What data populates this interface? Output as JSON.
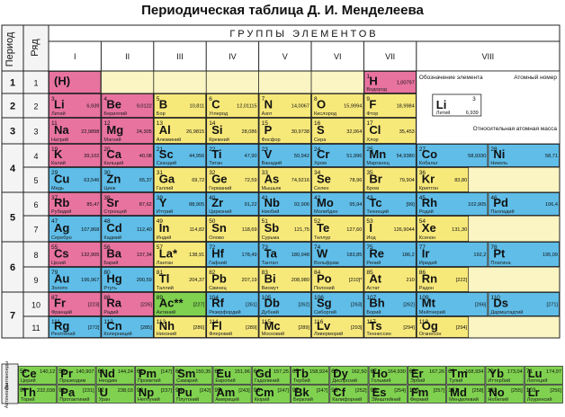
{
  "title": "Периодическая таблица Д. И. Менделеева",
  "headers": {
    "period": "Период",
    "row": "Ряд",
    "groups": "ГРУППЫ ЭЛЕМЕНТОВ",
    "group_numerals": [
      "I",
      "II",
      "III",
      "IV",
      "V",
      "VI",
      "VII",
      "VIII"
    ],
    "lanthanides": "Лантаноиды",
    "actinides": "Актиноиды"
  },
  "periods": [
    "1",
    "2",
    "3",
    "4",
    "5",
    "6",
    "7"
  ],
  "rows": [
    "1",
    "2",
    "3",
    "4",
    "5",
    "6",
    "7",
    "8",
    "9",
    "10",
    "11"
  ],
  "legend": {
    "symbol": "Li",
    "number": "3",
    "name": "Литий",
    "mass": "6,939",
    "label_designation": "Обозначение элемента",
    "label_atomic_number": "Атомный номер",
    "label_atomic_mass": "Относительная атомная масса"
  },
  "colors": {
    "s": "#e8739f",
    "p": "#f7e87a",
    "d": "#5fbde8",
    "f": "#7fd14f",
    "empty": "#fbf5c4",
    "border": "#222222"
  },
  "elements": [
    {
      "col": 0,
      "row": 1,
      "sym": "(H)",
      "num": "",
      "name": "",
      "mass": "",
      "c": "s"
    },
    {
      "col": 6,
      "row": 1,
      "sym": "H",
      "num": "1",
      "name": "Водород",
      "mass": "1,00797",
      "c": "s"
    },
    {
      "col": 7,
      "row": 1,
      "sym": "He",
      "num": "2",
      "name": "Гелий",
      "mass": "4,0026",
      "c": "s"
    },
    {
      "col": 0,
      "row": 2,
      "sym": "Li",
      "num": "3",
      "name": "Литий",
      "mass": "6,939",
      "c": "s"
    },
    {
      "col": 1,
      "row": 2,
      "sym": "Be",
      "num": "4",
      "name": "Бериллий",
      "mass": "9,0122",
      "c": "s"
    },
    {
      "col": 2,
      "row": 2,
      "sym": "B",
      "num": "5",
      "name": "Бор",
      "mass": "10,811",
      "c": "p"
    },
    {
      "col": 3,
      "row": 2,
      "sym": "C",
      "num": "6",
      "name": "Углерод",
      "mass": "12,01115",
      "c": "p"
    },
    {
      "col": 4,
      "row": 2,
      "sym": "N",
      "num": "7",
      "name": "Азот",
      "mass": "14,0067",
      "c": "p"
    },
    {
      "col": 5,
      "row": 2,
      "sym": "O",
      "num": "8",
      "name": "Кислород",
      "mass": "15,9994",
      "c": "p"
    },
    {
      "col": 6,
      "row": 2,
      "sym": "F",
      "num": "9",
      "name": "Фтор",
      "mass": "18,9984",
      "c": "p"
    },
    {
      "col": 7,
      "row": 2,
      "sym": "Ne",
      "num": "10",
      "name": "Неон",
      "mass": "20,179",
      "c": "p"
    },
    {
      "col": 0,
      "row": 3,
      "sym": "Na",
      "num": "11",
      "name": "Натрий",
      "mass": "22,9898",
      "c": "s"
    },
    {
      "col": 1,
      "row": 3,
      "sym": "Mg",
      "num": "12",
      "name": "Магний",
      "mass": "24,305",
      "c": "s"
    },
    {
      "col": 2,
      "row": 3,
      "sym": "Al",
      "num": "13",
      "name": "Алюминий",
      "mass": "26,9815",
      "c": "p"
    },
    {
      "col": 3,
      "row": 3,
      "sym": "Si",
      "num": "14",
      "name": "Кремний",
      "mass": "28,086",
      "c": "p"
    },
    {
      "col": 4,
      "row": 3,
      "sym": "P",
      "num": "15",
      "name": "Фосфор",
      "mass": "30,9738",
      "c": "p"
    },
    {
      "col": 5,
      "row": 3,
      "sym": "S",
      "num": "16",
      "name": "Сера",
      "mass": "32,064",
      "c": "p"
    },
    {
      "col": 6,
      "row": 3,
      "sym": "Cl",
      "num": "17",
      "name": "Хлор",
      "mass": "35,453",
      "c": "p"
    },
    {
      "col": 7,
      "row": 3,
      "sym": "Ar",
      "num": "18",
      "name": "Аргон",
      "mass": "39,948",
      "c": "p"
    },
    {
      "col": 0,
      "row": 4,
      "sym": "K",
      "num": "19",
      "name": "Калий",
      "mass": "39,102",
      "c": "s"
    },
    {
      "col": 1,
      "row": 4,
      "sym": "Ca",
      "num": "20",
      "name": "Кальций",
      "mass": "40,08",
      "c": "s"
    },
    {
      "col": 2,
      "row": 4,
      "sym": "Sc",
      "num": "21",
      "name": "Скандий",
      "mass": "44,956",
      "c": "d"
    },
    {
      "col": 3,
      "row": 4,
      "sym": "Ti",
      "num": "22",
      "name": "Титан",
      "mass": "47,90",
      "c": "d"
    },
    {
      "col": 4,
      "row": 4,
      "sym": "V",
      "num": "23",
      "name": "Ванадий",
      "mass": "50,942",
      "c": "d"
    },
    {
      "col": 5,
      "row": 4,
      "sym": "Cr",
      "num": "24",
      "name": "Хром",
      "mass": "51,996",
      "c": "d"
    },
    {
      "col": 6,
      "row": 4,
      "sym": "Mn",
      "num": "25",
      "name": "Марганец",
      "mass": "54,9380",
      "c": "d"
    },
    {
      "col": 7,
      "row": 4,
      "sym": "Fe",
      "num": "26",
      "name": "Железо",
      "mass": "55,847",
      "c": "d"
    },
    {
      "col": 8,
      "row": 4,
      "sym": "Co",
      "num": "27",
      "name": "Кобальт",
      "mass": "58,9330",
      "c": "d"
    },
    {
      "col": 9,
      "row": 4,
      "sym": "Ni",
      "num": "28",
      "name": "Никель",
      "mass": "58,71",
      "c": "d"
    },
    {
      "col": 0,
      "row": 5,
      "sym": "Cu",
      "num": "29",
      "name": "Медь",
      "mass": "63,546",
      "c": "d"
    },
    {
      "col": 1,
      "row": 5,
      "sym": "Zn",
      "num": "30",
      "name": "Цинк",
      "mass": "65,37",
      "c": "d"
    },
    {
      "col": 2,
      "row": 5,
      "sym": "Ga",
      "num": "31",
      "name": "Галлий",
      "mass": "69,72",
      "c": "p"
    },
    {
      "col": 3,
      "row": 5,
      "sym": "Ge",
      "num": "32",
      "name": "Германий",
      "mass": "72,59",
      "c": "p"
    },
    {
      "col": 4,
      "row": 5,
      "sym": "As",
      "num": "33",
      "name": "Мышьяк",
      "mass": "74,9216",
      "c": "p"
    },
    {
      "col": 5,
      "row": 5,
      "sym": "Se",
      "num": "34",
      "name": "Селен",
      "mass": "78,96",
      "c": "p"
    },
    {
      "col": 6,
      "row": 5,
      "sym": "Br",
      "num": "35",
      "name": "Бром",
      "mass": "79,904",
      "c": "p"
    },
    {
      "col": 7,
      "row": 5,
      "sym": "Kr",
      "num": "36",
      "name": "Криптон",
      "mass": "83,80",
      "c": "p"
    },
    {
      "col": 0,
      "row": 6,
      "sym": "Rb",
      "num": "37",
      "name": "Рубидий",
      "mass": "85,47",
      "c": "s"
    },
    {
      "col": 1,
      "row": 6,
      "sym": "Sr",
      "num": "38",
      "name": "Стронций",
      "mass": "87,62",
      "c": "s"
    },
    {
      "col": 2,
      "row": 6,
      "sym": "Y",
      "num": "39",
      "name": "Иттрий",
      "mass": "88,905",
      "c": "d"
    },
    {
      "col": 3,
      "row": 6,
      "sym": "Zr",
      "num": "40",
      "name": "Цирконий",
      "mass": "91,22",
      "c": "d"
    },
    {
      "col": 4,
      "row": 6,
      "sym": "Nb",
      "num": "41",
      "name": "Ниобий",
      "mass": "92,906",
      "c": "d"
    },
    {
      "col": 5,
      "row": 6,
      "sym": "Mo",
      "num": "42",
      "name": "Молибден",
      "mass": "95,94",
      "c": "d"
    },
    {
      "col": 6,
      "row": 6,
      "sym": "Tc",
      "num": "43",
      "name": "Технеций",
      "mass": "[99]",
      "c": "d"
    },
    {
      "col": 7,
      "row": 6,
      "sym": "Ru",
      "num": "44",
      "name": "Рутений",
      "mass": "101,07",
      "c": "d"
    },
    {
      "col": 8,
      "row": 6,
      "sym": "Rh",
      "num": "45",
      "name": "Родий",
      "mass": "102,905",
      "c": "d"
    },
    {
      "col": 9,
      "row": 6,
      "sym": "Pd",
      "num": "46",
      "name": "Палладий",
      "mass": "106,4",
      "c": "d"
    },
    {
      "col": 0,
      "row": 7,
      "sym": "Ag",
      "num": "47",
      "name": "Серебро",
      "mass": "107,868",
      "c": "d"
    },
    {
      "col": 1,
      "row": 7,
      "sym": "Cd",
      "num": "48",
      "name": "Кадмий",
      "mass": "112,40",
      "c": "d"
    },
    {
      "col": 2,
      "row": 7,
      "sym": "In",
      "num": "49",
      "name": "Индий",
      "mass": "114,82",
      "c": "p"
    },
    {
      "col": 3,
      "row": 7,
      "sym": "Sn",
      "num": "50",
      "name": "Олово",
      "mass": "118,69",
      "c": "p"
    },
    {
      "col": 4,
      "row": 7,
      "sym": "Sb",
      "num": "51",
      "name": "Сурьма",
      "mass": "121,75",
      "c": "p"
    },
    {
      "col": 5,
      "row": 7,
      "sym": "Te",
      "num": "52",
      "name": "Теллур",
      "mass": "127,60",
      "c": "p"
    },
    {
      "col": 6,
      "row": 7,
      "sym": "I",
      "num": "53",
      "name": "Иод",
      "mass": "126,9044",
      "c": "p"
    },
    {
      "col": 7,
      "row": 7,
      "sym": "Xe",
      "num": "54",
      "name": "Ксенон",
      "mass": "131,30",
      "c": "p"
    },
    {
      "col": 0,
      "row": 8,
      "sym": "Cs",
      "num": "55",
      "name": "Цезий",
      "mass": "132,905",
      "c": "s"
    },
    {
      "col": 1,
      "row": 8,
      "sym": "Ba",
      "num": "56",
      "name": "Барий",
      "mass": "137,34",
      "c": "s"
    },
    {
      "col": 2,
      "row": 8,
      "sym": "La*",
      "num": "57",
      "name": "Лантан",
      "mass": "138,91",
      "c": "p"
    },
    {
      "col": 3,
      "row": 8,
      "sym": "Hf",
      "num": "72",
      "name": "Гафний",
      "mass": "178,49",
      "c": "d"
    },
    {
      "col": 4,
      "row": 8,
      "sym": "Ta",
      "num": "73",
      "name": "Тантал",
      "mass": "180,948",
      "c": "d"
    },
    {
      "col": 5,
      "row": 8,
      "sym": "W",
      "num": "74",
      "name": "Вольфрам",
      "mass": "183,85",
      "c": "d"
    },
    {
      "col": 6,
      "row": 8,
      "sym": "Re",
      "num": "75",
      "name": "Рений",
      "mass": "186,2",
      "c": "d"
    },
    {
      "col": 7,
      "row": 8,
      "sym": "Os",
      "num": "76",
      "name": "Осмий",
      "mass": "190,2",
      "c": "d"
    },
    {
      "col": 8,
      "row": 8,
      "sym": "Ir",
      "num": "77",
      "name": "Иридий",
      "mass": "192,2",
      "c": "d"
    },
    {
      "col": 9,
      "row": 8,
      "sym": "Pt",
      "num": "78",
      "name": "Платина",
      "mass": "195,09",
      "c": "d"
    },
    {
      "col": 0,
      "row": 9,
      "sym": "Au",
      "num": "79",
      "name": "Золото",
      "mass": "196,967",
      "c": "d"
    },
    {
      "col": 1,
      "row": 9,
      "sym": "Hg",
      "num": "80",
      "name": "Ртуть",
      "mass": "200,59",
      "c": "d"
    },
    {
      "col": 2,
      "row": 9,
      "sym": "Tl",
      "num": "81",
      "name": "Таллий",
      "mass": "204,37",
      "c": "p"
    },
    {
      "col": 3,
      "row": 9,
      "sym": "Pb",
      "num": "82",
      "name": "Свинец",
      "mass": "207,19",
      "c": "p"
    },
    {
      "col": 4,
      "row": 9,
      "sym": "Bi",
      "num": "83",
      "name": "Висмут",
      "mass": "208,980",
      "c": "p"
    },
    {
      "col": 5,
      "row": 9,
      "sym": "Po",
      "num": "84",
      "name": "Полоний",
      "mass": "[210]*",
      "c": "p"
    },
    {
      "col": 6,
      "row": 9,
      "sym": "At",
      "num": "85",
      "name": "Астат",
      "mass": "210",
      "c": "p"
    },
    {
      "col": 7,
      "row": 9,
      "sym": "Rn",
      "num": "86",
      "name": "Радон",
      "mass": "[222]",
      "c": "p"
    },
    {
      "col": 0,
      "row": 10,
      "sym": "Fr",
      "num": "87",
      "name": "Франций",
      "mass": "[223]",
      "c": "s"
    },
    {
      "col": 1,
      "row": 10,
      "sym": "Ra",
      "num": "88",
      "name": "Радий",
      "mass": "[226]",
      "c": "s"
    },
    {
      "col": 2,
      "row": 10,
      "sym": "Ac**",
      "num": "89",
      "name": "Актиний",
      "mass": "[227]",
      "c": "f"
    },
    {
      "col": 3,
      "row": 10,
      "sym": "Rf",
      "num": "104",
      "name": "Резерфордий",
      "mass": "[261]",
      "c": "d"
    },
    {
      "col": 4,
      "row": 10,
      "sym": "Db",
      "num": "105",
      "name": "Дубний",
      "mass": "[262]",
      "c": "d"
    },
    {
      "col": 5,
      "row": 10,
      "sym": "Sg",
      "num": "106",
      "name": "Сиборгий",
      "mass": "[263]",
      "c": "d"
    },
    {
      "col": 6,
      "row": 10,
      "sym": "Bh",
      "num": "107",
      "name": "Борий",
      "mass": "[262]",
      "c": "d"
    },
    {
      "col": 7,
      "row": 10,
      "sym": "Hs",
      "num": "108",
      "name": "Хассий",
      "mass": "[265]",
      "c": "d"
    },
    {
      "col": 8,
      "row": 10,
      "sym": "Mt",
      "num": "109",
      "name": "Мейтнерий",
      "mass": "[266]",
      "c": "d"
    },
    {
      "col": 9,
      "row": 10,
      "sym": "Ds",
      "num": "110",
      "name": "Дармштадтий",
      "mass": "[271]",
      "c": "d"
    },
    {
      "col": 0,
      "row": 11,
      "sym": "Rg",
      "num": "111",
      "name": "Рентгений",
      "mass": "[272]",
      "c": "d"
    },
    {
      "col": 1,
      "row": 11,
      "sym": "Cn",
      "num": "112",
      "name": "Коперниций",
      "mass": "[285]",
      "c": "d"
    },
    {
      "col": 2,
      "row": 11,
      "sym": "Nh",
      "num": "113",
      "name": "Нихоний",
      "mass": "[286]",
      "c": "p"
    },
    {
      "col": 3,
      "row": 11,
      "sym": "Fl",
      "num": "114",
      "name": "Флеровий",
      "mass": "[289]",
      "c": "p"
    },
    {
      "col": 4,
      "row": 11,
      "sym": "Mc",
      "num": "115",
      "name": "Московий",
      "mass": "[289]",
      "c": "p"
    },
    {
      "col": 5,
      "row": 11,
      "sym": "Lv",
      "num": "116",
      "name": "Ливерморий",
      "mass": "[293]",
      "c": "p"
    },
    {
      "col": 6,
      "row": 11,
      "sym": "Ts",
      "num": "117",
      "name": "Теннессин",
      "mass": "[294]",
      "c": "p"
    },
    {
      "col": 7,
      "row": 11,
      "sym": "Og",
      "num": "118",
      "name": "Оганесон",
      "mass": "[294]",
      "c": "p"
    }
  ],
  "lanthanides": [
    {
      "sym": "Ce",
      "num": "58",
      "name": "Церий",
      "mass": "140,12"
    },
    {
      "sym": "Pr",
      "num": "59",
      "name": "Празеодим",
      "mass": "140,907"
    },
    {
      "sym": "Nd",
      "num": "60",
      "name": "Неодим",
      "mass": "144,24"
    },
    {
      "sym": "Pm",
      "num": "61",
      "name": "Прометий",
      "mass": "[147]"
    },
    {
      "sym": "Sm",
      "num": "62",
      "name": "Самарий",
      "mass": "150,35"
    },
    {
      "sym": "Eu",
      "num": "63",
      "name": "Европий",
      "mass": "151,96"
    },
    {
      "sym": "Gd",
      "num": "64",
      "name": "Гадолиний",
      "mass": "157,25"
    },
    {
      "sym": "Tb",
      "num": "65",
      "name": "Тербий",
      "mass": "158,924"
    },
    {
      "sym": "Dy",
      "num": "66",
      "name": "Диспрозий",
      "mass": "162,50"
    },
    {
      "sym": "Ho",
      "num": "67",
      "name": "Гольмий",
      "mass": "164,930"
    },
    {
      "sym": "Er",
      "num": "68",
      "name": "Эрбий",
      "mass": "167,26"
    },
    {
      "sym": "Tm",
      "num": "69",
      "name": "Тулий",
      "mass": "168,934"
    },
    {
      "sym": "Yb",
      "num": "70",
      "name": "Иттербий",
      "mass": "173,04"
    },
    {
      "sym": "Lu",
      "num": "71",
      "name": "Лютеций",
      "mass": "174,97"
    }
  ],
  "actinides": [
    {
      "sym": "Th",
      "num": "90",
      "name": "Торий",
      "mass": "232,038"
    },
    {
      "sym": "Pa",
      "num": "91",
      "name": "Протактиний",
      "mass": "[231]"
    },
    {
      "sym": "U",
      "num": "92",
      "name": "Уран",
      "mass": "238,03"
    },
    {
      "sym": "Np",
      "num": "93",
      "name": "Нептуний",
      "mass": "[237]"
    },
    {
      "sym": "Pu",
      "num": "94",
      "name": "Плутоний",
      "mass": "[242]"
    },
    {
      "sym": "Am",
      "num": "95",
      "name": "Америций",
      "mass": "[243]"
    },
    {
      "sym": "Cm",
      "num": "96",
      "name": "Кюрий",
      "mass": "[247]"
    },
    {
      "sym": "Bk",
      "num": "97",
      "name": "Берклий",
      "mass": "[247]"
    },
    {
      "sym": "Cf",
      "num": "98",
      "name": "Калифорний",
      "mass": "[252]"
    },
    {
      "sym": "Es",
      "num": "99",
      "name": "Эйнштейний",
      "mass": "[254]"
    },
    {
      "sym": "Fm",
      "num": "100",
      "name": "Фермий",
      "mass": "[257]"
    },
    {
      "sym": "Md",
      "num": "101",
      "name": "Менделевий",
      "mass": "[258]"
    },
    {
      "sym": "No",
      "num": "102",
      "name": "Нобелий",
      "mass": "[255]"
    },
    {
      "sym": "Lr",
      "num": "103",
      "name": "Лоуренсий",
      "mass": "[256]"
    }
  ]
}
